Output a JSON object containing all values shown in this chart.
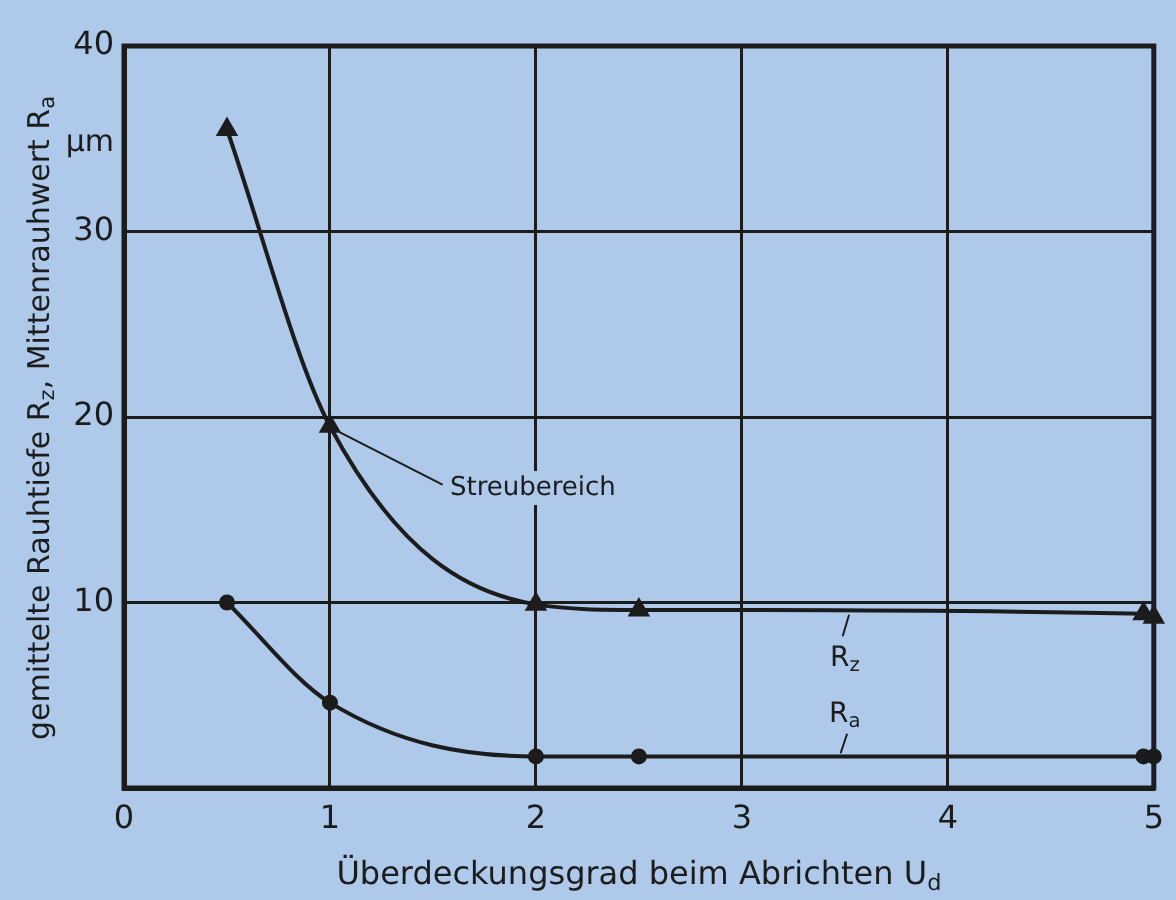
{
  "chart_data": {
    "type": "line",
    "xlabel": "Überdeckungsgrad beim Abrichten U$_{d}$",
    "ylabel": "gemittelte Rauhtiefe R$_{z}$, Mittenrauhwert R$_{a}$",
    "x": [
      0.5,
      1,
      2,
      2.5,
      4.95,
      5
    ],
    "series": [
      {
        "name": "R$_{z}$",
        "color": "#1c1c1c",
        "marker": "triangle",
        "values": [
          35.5,
          19.5,
          9.9,
          9.6,
          9.4,
          9.2
        ]
      },
      {
        "name": "R$_{a}$",
        "color": "#1c1c1c",
        "marker": "circle",
        "values": [
          10,
          4.6,
          1.7,
          1.7,
          1.7,
          1.7
        ]
      }
    ],
    "xlim": [
      0,
      5
    ],
    "xticks": [
      0,
      1,
      2,
      3,
      4,
      5
    ],
    "ylim": [
      0,
      40
    ],
    "yticks": [
      10,
      20,
      30,
      40
    ],
    "grid": true,
    "annotations": [
      "µm",
      {
        "text": "Streubereich",
        "x": 1,
        "y": 19.5
      }
    ]
  }
}
